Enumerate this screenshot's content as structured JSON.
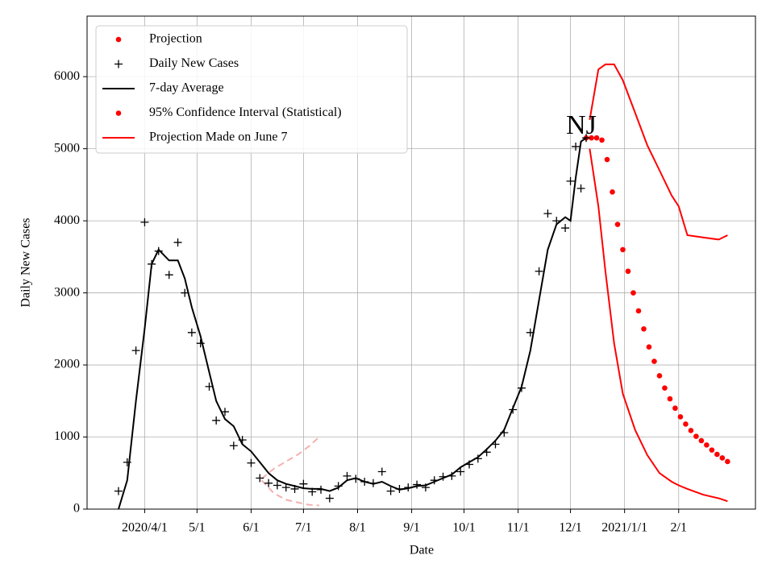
{
  "chart_data": {
    "type": "line",
    "annotation": "NJ",
    "xlabel": "Date",
    "ylabel": "Daily New Cases",
    "xlim": [
      "2020-02-28",
      "2021-03-17"
    ],
    "xticks": [
      {
        "value": "2020-04-01",
        "label": "2020/4/1"
      },
      {
        "value": "2020-05-01",
        "label": "5/1"
      },
      {
        "value": "2020-06-01",
        "label": "6/1"
      },
      {
        "value": "2020-07-01",
        "label": "7/1"
      },
      {
        "value": "2020-08-01",
        "label": "8/1"
      },
      {
        "value": "2020-09-01",
        "label": "9/1"
      },
      {
        "value": "2020-10-01",
        "label": "10/1"
      },
      {
        "value": "2020-11-01",
        "label": "11/1"
      },
      {
        "value": "2020-12-01",
        "label": "12/1"
      },
      {
        "value": "2021-01-01",
        "label": "2021/1/1"
      },
      {
        "value": "2021-02-01",
        "label": "2/1"
      }
    ],
    "ylim": [
      0,
      6840
    ],
    "yticks": [
      0,
      1000,
      2000,
      3000,
      4000,
      5000,
      6000
    ],
    "grid": true,
    "legend": "upper left",
    "series": [
      {
        "name": "Projection",
        "color": "#ff0000",
        "style": "dot",
        "x": [
          "2020-12-10",
          "2020-12-13",
          "2020-12-16",
          "2020-12-19",
          "2020-12-22",
          "2020-12-25",
          "2020-12-28",
          "2020-12-31",
          "2021-01-03",
          "2021-01-06",
          "2021-01-09",
          "2021-01-12",
          "2021-01-15",
          "2021-01-18",
          "2021-01-21",
          "2021-01-24",
          "2021-01-27",
          "2021-01-30",
          "2021-02-02",
          "2021-02-05",
          "2021-02-08",
          "2021-02-11",
          "2021-02-14",
          "2021-02-17",
          "2021-02-20",
          "2021-02-23",
          "2021-02-26",
          "2021-03-01"
        ],
        "values": [
          5150,
          5150,
          5150,
          5120,
          4850,
          4400,
          3950,
          3600,
          3300,
          3000,
          2750,
          2500,
          2250,
          2050,
          1850,
          1680,
          1530,
          1400,
          1280,
          1180,
          1090,
          1010,
          950,
          890,
          820,
          760,
          710,
          660
        ]
      },
      {
        "name": "Daily New Cases",
        "color": "#000000",
        "style": "plus",
        "x": [
          "2020-03-17",
          "2020-03-22",
          "2020-03-27",
          "2020-04-01",
          "2020-04-05",
          "2020-04-09",
          "2020-04-15",
          "2020-04-20",
          "2020-04-24",
          "2020-04-28",
          "2020-05-03",
          "2020-05-08",
          "2020-05-12",
          "2020-05-17",
          "2020-05-22",
          "2020-05-27",
          "2020-06-01",
          "2020-06-06",
          "2020-06-11",
          "2020-06-16",
          "2020-06-21",
          "2020-06-26",
          "2020-07-01",
          "2020-07-06",
          "2020-07-11",
          "2020-07-16",
          "2020-07-21",
          "2020-07-26",
          "2020-07-31",
          "2020-08-05",
          "2020-08-10",
          "2020-08-15",
          "2020-08-20",
          "2020-08-25",
          "2020-08-30",
          "2020-09-04",
          "2020-09-09",
          "2020-09-14",
          "2020-09-19",
          "2020-09-24",
          "2020-09-29",
          "2020-10-04",
          "2020-10-09",
          "2020-10-14",
          "2020-10-19",
          "2020-10-24",
          "2020-10-29",
          "2020-11-03",
          "2020-11-08",
          "2020-11-13",
          "2020-11-18",
          "2020-11-23",
          "2020-11-28",
          "2020-12-01",
          "2020-12-04",
          "2020-12-07",
          "2020-12-10"
        ],
        "values": [
          250,
          650,
          2200,
          3980,
          3400,
          3580,
          3250,
          3700,
          3000,
          2450,
          2300,
          1700,
          1230,
          1350,
          880,
          960,
          640,
          430,
          360,
          330,
          300,
          280,
          350,
          240,
          270,
          150,
          320,
          460,
          420,
          380,
          360,
          520,
          250,
          280,
          300,
          340,
          300,
          400,
          450,
          460,
          520,
          620,
          700,
          790,
          900,
          1060,
          1380,
          1680,
          2450,
          3300,
          4100,
          4000,
          3900,
          4550,
          5030,
          4450,
          5150
        ]
      },
      {
        "name": "7-day Average",
        "color": "#000000",
        "style": "line",
        "x": [
          "2020-03-17",
          "2020-03-22",
          "2020-03-27",
          "2020-04-01",
          "2020-04-05",
          "2020-04-09",
          "2020-04-15",
          "2020-04-20",
          "2020-04-24",
          "2020-04-28",
          "2020-05-03",
          "2020-05-08",
          "2020-05-12",
          "2020-05-17",
          "2020-05-22",
          "2020-05-27",
          "2020-06-01",
          "2020-06-06",
          "2020-06-11",
          "2020-06-16",
          "2020-06-21",
          "2020-06-26",
          "2020-07-01",
          "2020-07-06",
          "2020-07-11",
          "2020-07-16",
          "2020-07-21",
          "2020-07-26",
          "2020-07-31",
          "2020-08-05",
          "2020-08-10",
          "2020-08-15",
          "2020-08-20",
          "2020-08-25",
          "2020-08-30",
          "2020-09-04",
          "2020-09-09",
          "2020-09-14",
          "2020-09-19",
          "2020-09-24",
          "2020-09-29",
          "2020-10-04",
          "2020-10-09",
          "2020-10-14",
          "2020-10-19",
          "2020-10-24",
          "2020-10-29",
          "2020-11-03",
          "2020-11-08",
          "2020-11-13",
          "2020-11-18",
          "2020-11-23",
          "2020-11-28",
          "2020-12-01",
          "2020-12-04",
          "2020-12-07",
          "2020-12-10"
        ],
        "values": [
          0,
          400,
          1500,
          2500,
          3400,
          3600,
          3450,
          3450,
          3200,
          2800,
          2400,
          1900,
          1500,
          1250,
          1150,
          900,
          800,
          650,
          500,
          400,
          350,
          320,
          290,
          280,
          280,
          250,
          300,
          400,
          430,
          380,
          350,
          380,
          320,
          270,
          290,
          320,
          330,
          380,
          430,
          480,
          580,
          650,
          720,
          830,
          950,
          1100,
          1400,
          1700,
          2200,
          2900,
          3600,
          3950,
          4050,
          4000,
          4600,
          5100,
          5150
        ]
      },
      {
        "name": "95% Confidence Interval (Statistical)",
        "color": "#ff0000",
        "style": "dot",
        "x": [],
        "values": []
      },
      {
        "name": "Projection Made on June 7",
        "color": "#ff0000",
        "style": "line",
        "x": [
          "2020-12-12",
          "2020-12-17",
          "2020-12-21",
          "2020-12-26",
          "2020-12-31",
          "2021-01-07",
          "2021-01-14",
          "2021-01-21",
          "2021-01-28",
          "2021-02-01",
          "2021-02-06",
          "2021-02-15",
          "2021-02-24",
          "2021-03-01"
        ],
        "values": [
          5400,
          6100,
          6170,
          6170,
          5950,
          5500,
          5050,
          4700,
          4350,
          4200,
          3800,
          3770,
          3740,
          3800
        ],
        "lower_values": [
          5000,
          4200,
          3300,
          2300,
          1600,
          1100,
          750,
          500,
          380,
          330,
          280,
          200,
          150,
          110
        ]
      }
    ],
    "june7_band": {
      "color": "#f4b0b0",
      "x": [
        "2020-06-07",
        "2020-06-14",
        "2020-06-21",
        "2020-06-28",
        "2020-07-04",
        "2020-07-10"
      ],
      "upper": [
        420,
        560,
        660,
        760,
        870,
        1000
      ],
      "lower": [
        400,
        220,
        130,
        90,
        60,
        50
      ]
    }
  }
}
